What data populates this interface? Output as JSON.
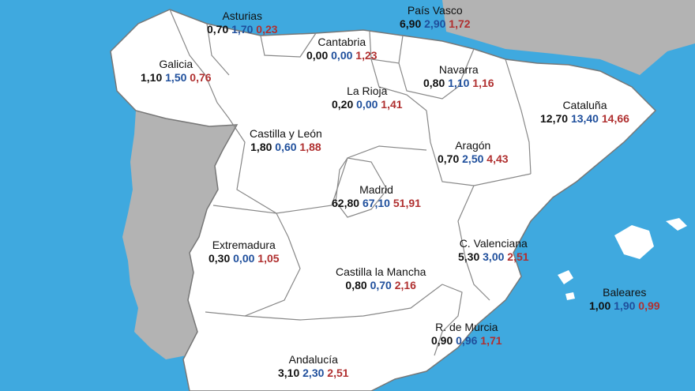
{
  "colors": {
    "sea": "#3fa9df",
    "spain": "#ffffff",
    "foreign": "#b3b3b3",
    "border": "#777777",
    "value1": "#111111",
    "value2": "#1f4f9c",
    "value3": "#b03030"
  },
  "regions": [
    {
      "id": "asturias",
      "name": "Asturias",
      "values": [
        "0,70",
        "1,70",
        "0,23"
      ]
    },
    {
      "id": "pais-vasco",
      "name": "País Vasco",
      "values": [
        "6,90",
        "2,90",
        "1,72"
      ]
    },
    {
      "id": "cantabria",
      "name": "Cantabria",
      "values": [
        "0,00",
        "0,00",
        "1,23"
      ]
    },
    {
      "id": "galicia",
      "name": "Galicia",
      "values": [
        "1,10",
        "1,50",
        "0,76"
      ]
    },
    {
      "id": "navarra",
      "name": "Navarra",
      "values": [
        "0,80",
        "1,10",
        "1,16"
      ]
    },
    {
      "id": "la-rioja",
      "name": "La Rioja",
      "values": [
        "0,20",
        "0,00",
        "1,41"
      ]
    },
    {
      "id": "cataluna",
      "name": "Cataluña",
      "values": [
        "12,70",
        "13,40",
        "14,66"
      ]
    },
    {
      "id": "castilla-y-leon",
      "name": "Castilla y León",
      "values": [
        "1,80",
        "0,60",
        "1,88"
      ]
    },
    {
      "id": "aragon",
      "name": "Aragón",
      "values": [
        "0,70",
        "2,50",
        "4,43"
      ]
    },
    {
      "id": "madrid",
      "name": "Madrid",
      "values": [
        "62,80",
        "67,10",
        "51,91"
      ]
    },
    {
      "id": "extremadura",
      "name": "Extremadura",
      "values": [
        "0,30",
        "0,00",
        "1,05"
      ]
    },
    {
      "id": "c-valenciana",
      "name": "C. Valenciana",
      "values": [
        "5,30",
        "3,00",
        "2,51"
      ]
    },
    {
      "id": "castilla-la-mancha",
      "name": "Castilla la Mancha",
      "values": [
        "0,80",
        "0,70",
        "2,16"
      ]
    },
    {
      "id": "baleares",
      "name": "Baleares",
      "values": [
        "1,00",
        "1,90",
        "0,99"
      ]
    },
    {
      "id": "murcia",
      "name": "R. de Murcia",
      "values": [
        "0,90",
        "0,96",
        "1,71"
      ]
    },
    {
      "id": "andalucia",
      "name": "Andalucía",
      "values": [
        "3,10",
        "2,30",
        "2,51"
      ]
    }
  ]
}
